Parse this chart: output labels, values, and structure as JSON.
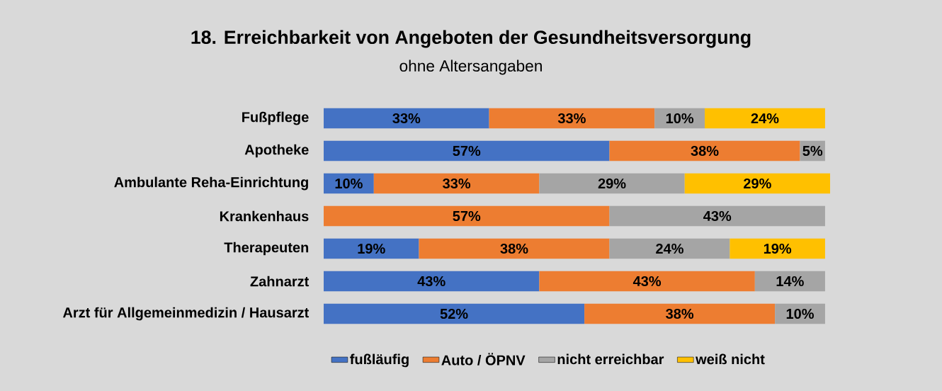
{
  "chart_data": {
    "type": "bar",
    "orientation": "horizontal",
    "stacked": true,
    "legend": "bottom",
    "title": "18. Erreichbarkeit von Angeboten der Gesundheitsversorgung",
    "subtitle": "ohne Altersangaben",
    "categories": [
      "Fußpflege",
      "Apotheke",
      "Ambulante Reha-Einrichtung",
      "Krankenhaus",
      "Therapeuten",
      "Zahnarzt",
      "Arzt für Allgemeinmedizin / Hausarzt"
    ],
    "series": [
      {
        "name": "fußläufig",
        "color": "#4472c4",
        "values": [
          33,
          57,
          10,
          null,
          19,
          43,
          52
        ],
        "value_labels": [
          "33%",
          "57%",
          "10%",
          null,
          "19%",
          "43%",
          "52%"
        ]
      },
      {
        "name": "Auto / ÖPNV",
        "color": "#ed7d31",
        "values": [
          33,
          38,
          33,
          57,
          38,
          43,
          38
        ],
        "value_labels": [
          "33%",
          "38%",
          "33%",
          "57%",
          "38%",
          "43%",
          "38%"
        ]
      },
      {
        "name": "nicht erreichbar",
        "color": "#a5a5a5",
        "values": [
          10,
          5,
          29,
          43,
          24,
          14,
          10
        ],
        "value_labels": [
          "10%",
          "5%",
          "29%",
          "43%",
          "24%",
          "14%",
          "10%"
        ]
      },
      {
        "name": "weiß nicht",
        "color": "#ffc000",
        "values": [
          24,
          null,
          29,
          null,
          19,
          null,
          null
        ],
        "value_labels": [
          "24%",
          null,
          "29%",
          null,
          "19%",
          null,
          null
        ]
      }
    ]
  }
}
